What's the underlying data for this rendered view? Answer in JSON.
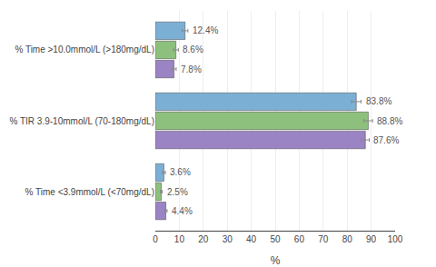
{
  "chart_data": {
    "type": "bar",
    "orientation": "horizontal",
    "categories": [
      "% Time >10.0mmol/L (>180mg/dL)",
      "% TIR 3.9-10mmol/L (70-180mg/dL)",
      "% Time <3.9mmol/L (<70mg/dL)"
    ],
    "series": [
      {
        "color": "#7bafd4",
        "values": [
          12.4,
          83.8,
          3.6
        ],
        "errors": [
          1.2,
          2.0,
          0.6
        ],
        "value_labels": [
          "12.4%",
          "83.8%",
          "3.6%"
        ]
      },
      {
        "color": "#8dc07c",
        "values": [
          8.6,
          88.8,
          2.5
        ],
        "errors": [
          1.0,
          1.8,
          0.4
        ],
        "value_labels": [
          "8.6%",
          "88.8%",
          "2.5%"
        ]
      },
      {
        "color": "#9b84c4",
        "values": [
          7.8,
          87.6,
          4.4
        ],
        "errors": [
          0.9,
          1.6,
          0.5
        ],
        "value_labels": [
          "7.8%",
          "87.6%",
          "4.4%"
        ]
      }
    ],
    "xlabel": "%",
    "xlim": [
      0,
      100
    ],
    "xticks": [
      0,
      10,
      20,
      30,
      40,
      50,
      60,
      70,
      80,
      90,
      100
    ],
    "grid": true,
    "data_labels": true
  }
}
